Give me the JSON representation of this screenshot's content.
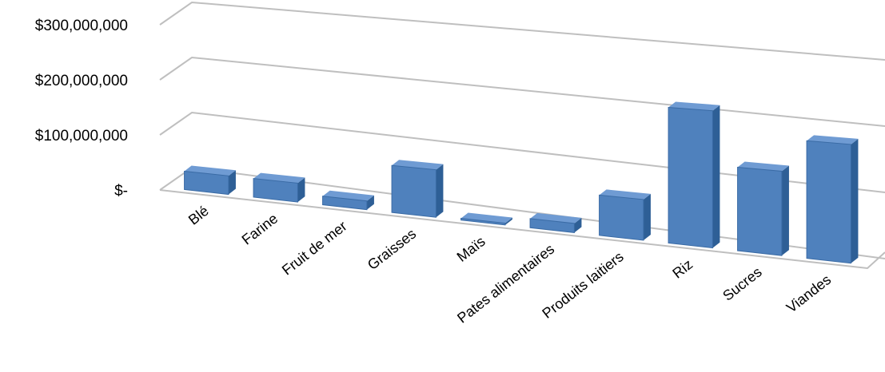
{
  "chart_data": {
    "type": "bar",
    "style": "3d-column",
    "categories": [
      "Blé",
      "Farine",
      "Fruit de mer",
      "Graisses",
      "Maïs",
      "Pates alimentaires",
      "Produits laitiers",
      "Riz",
      "Sucres",
      "Viandes"
    ],
    "values": [
      33000000,
      33000000,
      15000000,
      80000000,
      3000000,
      15000000,
      65000000,
      215000000,
      130000000,
      180000000
    ],
    "y_tick_labels": [
      "$-",
      "$100,000,000",
      "$200,000,000",
      "$300,000,000"
    ],
    "y_ticks": [
      0,
      100000000,
      200000000,
      300000000
    ],
    "ylim": [
      0,
      300000000
    ],
    "grid": true,
    "legend": "none",
    "colors": {
      "bar_front": "#4F81BD",
      "bar_side": "#2E5F96",
      "bar_top": "#6F9BD3",
      "grid": "#BFBFBF"
    }
  }
}
